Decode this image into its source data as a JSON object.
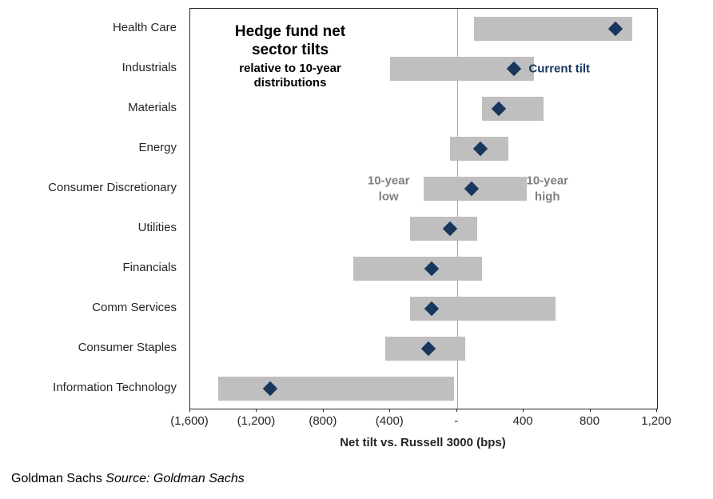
{
  "chart_data": {
    "type": "bar",
    "subtype": "horizontal-range-bar-with-markers",
    "title": "Hedge fund net\nsector tilts",
    "subtitle": "relative to 10-year\ndistributions",
    "xlabel": "Net tilt vs. Russell 3000 (bps)",
    "xlim": [
      -1600,
      1200
    ],
    "xticks": [
      -1600,
      -1200,
      -800,
      -400,
      0,
      400,
      800,
      1200
    ],
    "xtick_labels": [
      "(1,600)",
      "(1,200)",
      "(800)",
      "(400)",
      "-",
      "400",
      "800",
      "1,200"
    ],
    "grid": "zero-line-only",
    "categories": [
      "Health Care",
      "Industrials",
      "Materials",
      "Energy",
      "Consumer Discretionary",
      "Utilities",
      "Financials",
      "Comm Services",
      "Consumer Staples",
      "Information Technology"
    ],
    "series": [
      {
        "name": "10-year low",
        "values": [
          100,
          -400,
          150,
          -40,
          -200,
          -280,
          -620,
          -280,
          -430,
          -1430
        ]
      },
      {
        "name": "10-year high",
        "values": [
          1050,
          460,
          520,
          310,
          420,
          120,
          150,
          590,
          50,
          -20
        ]
      },
      {
        "name": "Current tilt",
        "values": [
          950,
          340,
          250,
          140,
          90,
          -40,
          -150,
          -150,
          -170,
          -1120
        ]
      }
    ],
    "annotations": {
      "current_tilt": "Current tilt",
      "low": "10-year\nlow",
      "high": "10-year\nhigh"
    },
    "colors": {
      "range_bar": "#bfbfbf",
      "current_tilt_marker": "#17375e",
      "current_tilt_label": "#17375e",
      "range_annotation": "#7f7f7f",
      "zero_line": "#a6a6a6"
    }
  },
  "footer": {
    "brand": "Goldman Sachs",
    "source": "Source: Goldman Sachs"
  }
}
